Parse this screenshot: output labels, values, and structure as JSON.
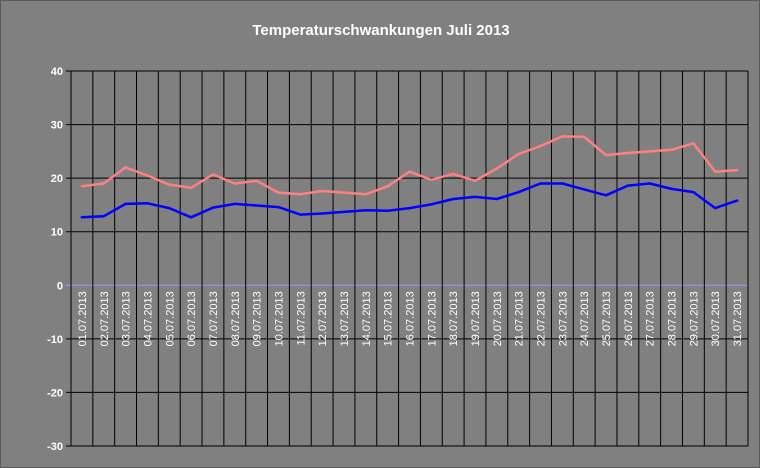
{
  "chart_data": {
    "type": "line",
    "title": "Temperaturschwankungen Juli 2013",
    "xlabel": "",
    "ylabel": "",
    "ylim": [
      -30,
      40
    ],
    "yticks": [
      40,
      30,
      20,
      10,
      0,
      -10,
      -20,
      -30
    ],
    "grid": true,
    "legend": "none",
    "categories": [
      "01.07.2013",
      "02.07.2013",
      "03.07.2013",
      "04.07.2013",
      "05.07.2013",
      "06.07.2013",
      "07.07.2013",
      "08.07.2013",
      "09.07.2013",
      "10.07.2013",
      "11.07.2013",
      "12.07.2013",
      "13.07.2013",
      "14.07.2013",
      "15.07.2013",
      "16.07.2013",
      "17.07.2013",
      "18.07.2013",
      "19.07.2013",
      "20.07.2013",
      "21.07.2013",
      "22.07.2013",
      "23.07.2013",
      "24.07.2013",
      "25.07.2013",
      "26.07.2013",
      "27.07.2013",
      "28.07.2013",
      "29.07.2013",
      "30.07.2013",
      "31.07.2013"
    ],
    "series": [
      {
        "color": "#ff8080",
        "values": [
          18.5,
          19.0,
          22.0,
          20.5,
          18.8,
          18.2,
          20.7,
          19.0,
          19.5,
          17.3,
          17.0,
          17.6,
          17.3,
          17.0,
          18.5,
          21.2,
          19.7,
          20.8,
          19.5,
          21.8,
          24.5,
          26.0,
          27.8,
          27.7,
          24.3,
          24.7,
          25.0,
          25.3,
          26.5,
          21.2,
          21.5
        ]
      },
      {
        "color": "#0000ff",
        "values": [
          12.7,
          12.9,
          15.2,
          15.3,
          14.4,
          12.7,
          14.5,
          15.2,
          14.9,
          14.6,
          13.2,
          13.4,
          13.7,
          14.0,
          13.9,
          14.4,
          15.1,
          16.1,
          16.5,
          16.1,
          17.4,
          19.0,
          19.0,
          17.9,
          16.8,
          18.6,
          19.0,
          18.0,
          17.4,
          14.4,
          15.8
        ]
      }
    ],
    "colors": {
      "background": "#808080",
      "grid": "#000000",
      "zero_line": "#9999ff",
      "text": "#ffffff"
    }
  }
}
